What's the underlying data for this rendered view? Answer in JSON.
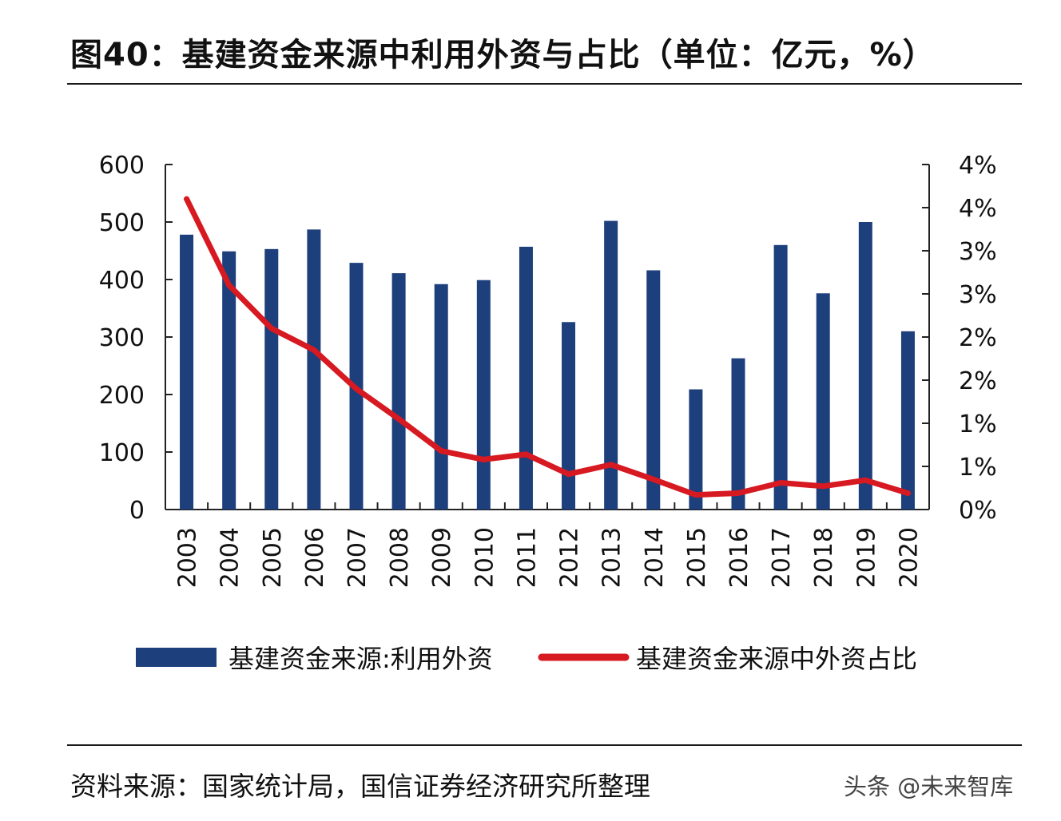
{
  "title": "图40：基建资金来源中利用外资与占比（单位：亿元，%）",
  "source": "资料来源：国家统计局，国信证券经济研究所整理",
  "watermark": "头条 @未来智库",
  "colors": {
    "bar": "#1d3f7c",
    "line": "#d71921",
    "axis": "#222222"
  },
  "chart_data": {
    "type": "bar+line",
    "title": "基建资金来源中利用外资与占比（单位：亿元，%）",
    "categories": [
      "2003",
      "2004",
      "2005",
      "2006",
      "2007",
      "2008",
      "2009",
      "2010",
      "2011",
      "2012",
      "2013",
      "2014",
      "2015",
      "2016",
      "2017",
      "2018",
      "2019",
      "2020"
    ],
    "series": [
      {
        "name": "基建资金来源:利用外资",
        "type": "bar",
        "axis": "left",
        "values": [
          478,
          449,
          453,
          487,
          429,
          411,
          392,
          399,
          457,
          326,
          502,
          416,
          209,
          263,
          460,
          376,
          500,
          310
        ]
      },
      {
        "name": "基建资金来源中外资占比",
        "type": "line",
        "axis": "right",
        "values": [
          3.6,
          2.6,
          2.1,
          1.85,
          1.4,
          1.05,
          0.68,
          0.58,
          0.64,
          0.41,
          0.52,
          0.35,
          0.17,
          0.19,
          0.31,
          0.27,
          0.34,
          0.19
        ]
      }
    ],
    "y_left": {
      "min": 0,
      "max": 600,
      "ticks": [
        "0",
        "100",
        "200",
        "300",
        "400",
        "500",
        "600"
      ]
    },
    "y_right": {
      "min": 0,
      "max": 4,
      "ticks": [
        "0%",
        "1%",
        "1%",
        "2%",
        "2%",
        "3%",
        "3%",
        "4%",
        "4%"
      ]
    },
    "legend": [
      "基建资金来源:利用外资",
      "基建资金来源中外资占比"
    ]
  }
}
